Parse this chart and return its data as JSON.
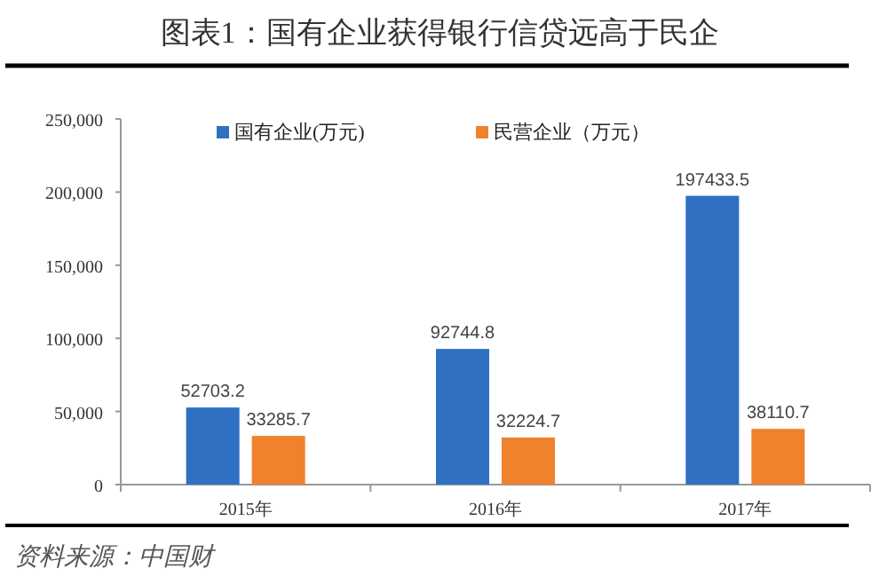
{
  "chart_data": {
    "type": "bar",
    "title": "图表1：国有企业获得银行信贷远高于民企",
    "categories": [
      "2015年",
      "2016年",
      "2017年"
    ],
    "series": [
      {
        "name": "国有企业(万元)",
        "color": "#2f70c2",
        "values": [
          52703.2,
          92744.8,
          197433.5
        ]
      },
      {
        "name": "民营企业（万元）",
        "color": "#f0822e",
        "values": [
          33285.7,
          32224.7,
          38110.7
        ]
      }
    ],
    "ylim": [
      0,
      250000
    ],
    "yticks": [
      0,
      {
        "value": 50000,
        "label": "50,000"
      },
      {
        "value": 100000,
        "label": "100,000"
      },
      {
        "value": 150000,
        "label": "150,000"
      },
      {
        "value": 200000,
        "label": "200,000"
      },
      {
        "value": 250000,
        "label": "250,000"
      }
    ],
    "data_labels": true,
    "grid": false,
    "legend": "top",
    "annotations": [
      "资料来源：中国财"
    ]
  }
}
